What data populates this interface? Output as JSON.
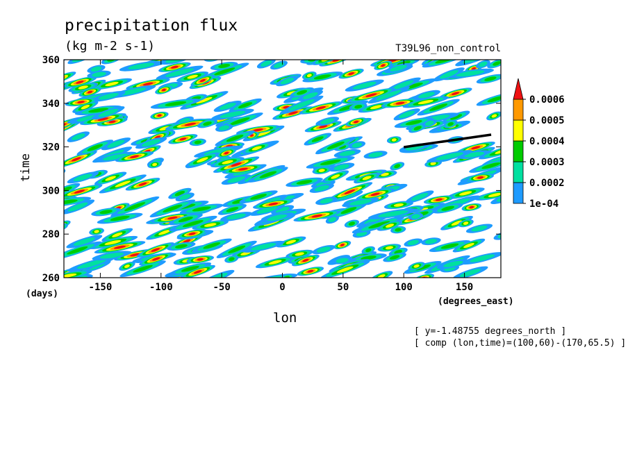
{
  "chart_data": {
    "type": "heatmap",
    "title": "precipitation flux",
    "units": "(kg m-2 s-1)",
    "experiment": "T39L96_non_control",
    "xlabel": "lon",
    "ylabel": "time",
    "x_units": "(degrees_east)",
    "y_units": "(days)",
    "xlim": [
      -180,
      180
    ],
    "ylim": [
      260,
      360
    ],
    "x_ticks": [
      -150,
      -100,
      -50,
      0,
      50,
      100,
      150
    ],
    "x_tick_labels": [
      "-150",
      "-100",
      "-50",
      "0",
      "50",
      "100",
      "150"
    ],
    "y_ticks": [
      260,
      280,
      300,
      320,
      340,
      360
    ],
    "y_tick_labels": [
      "260",
      "280",
      "300",
      "320",
      "340",
      "360"
    ],
    "colorbar": {
      "levels": [
        0.0001,
        0.0002,
        0.0003,
        0.0004,
        0.0005,
        0.0006
      ],
      "labels": [
        "1e-04",
        "0.0002",
        "0.0003",
        "0.0004",
        "0.0005",
        "0.0006"
      ],
      "colors": [
        "#1e9bff",
        "#00e0a0",
        "#00cc00",
        "#ffff00",
        "#ff9900",
        "#ee1111"
      ]
    },
    "composite_line": {
      "from": [
        100,
        60
      ],
      "to": [
        170,
        65.5
      ]
    },
    "annotations": [
      "[ y=-1.48755 degrees_north ]",
      "[ comp (lon,time)=(100,60)-(170,65.5) ]"
    ]
  }
}
